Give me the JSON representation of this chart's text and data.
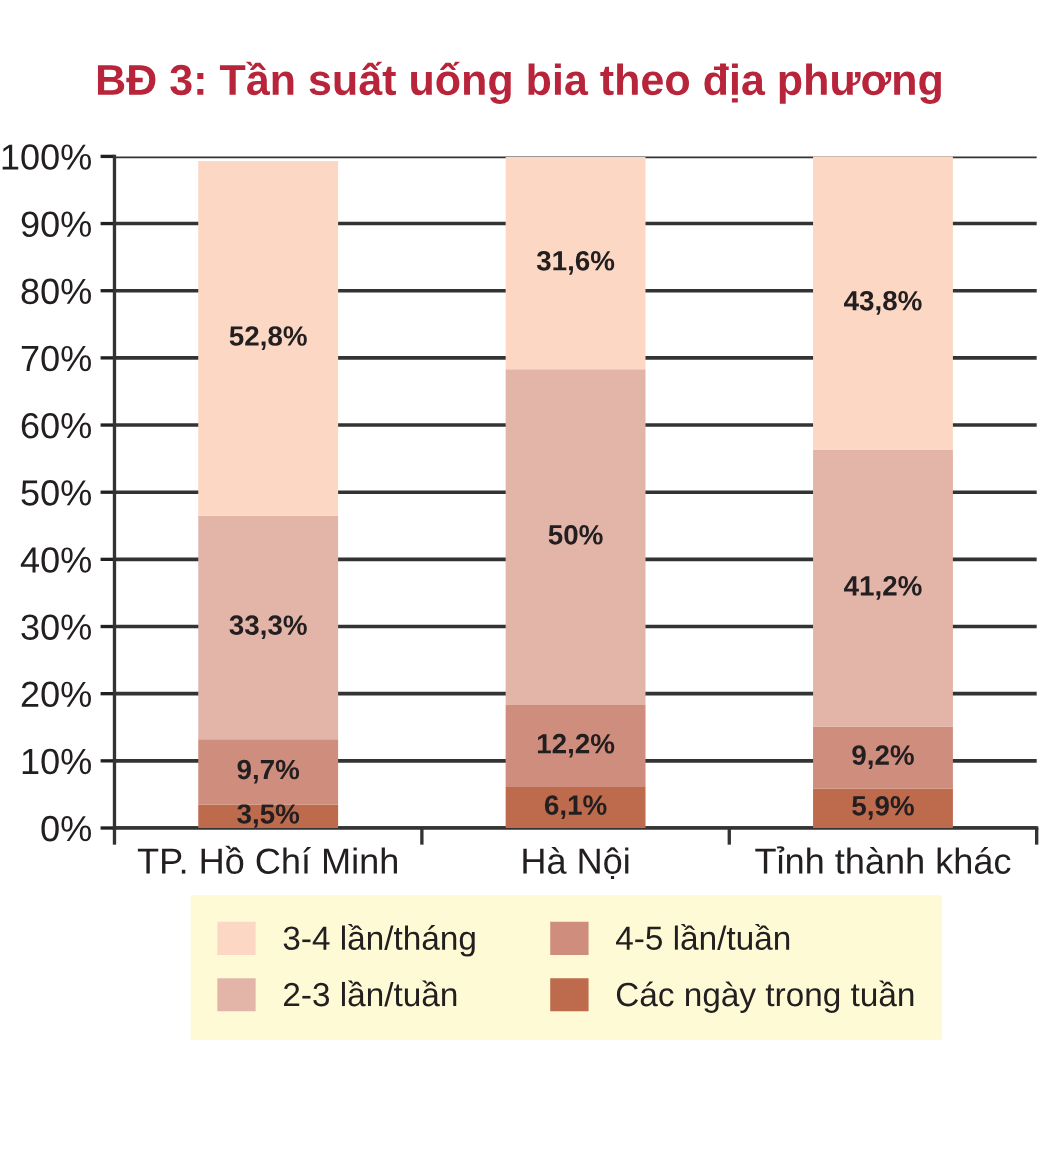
{
  "chart_data": {
    "type": "bar",
    "stacked": true,
    "title": "BĐ 3: Tần suất uống bia theo địa phương",
    "categories": [
      "TP. Hồ Chí Minh",
      "Hà Nội",
      "Tỉnh thành khác"
    ],
    "series": [
      {
        "name": "Các ngày trong tuần",
        "color": "#be6a4c",
        "values": [
          3.5,
          6.1,
          5.9
        ],
        "value_labels": [
          "3,5%",
          "6,1%",
          "5,9%"
        ]
      },
      {
        "name": "4-5 lần/tuần",
        "color": "#cf8d7d",
        "values": [
          9.7,
          12.2,
          9.2
        ],
        "value_labels": [
          "9,7%",
          "12,2%",
          "9,2%"
        ]
      },
      {
        "name": "2-3 lần/tuần",
        "color": "#e3b5a9",
        "values": [
          33.3,
          50,
          41.2
        ],
        "value_labels": [
          "33,3%",
          "50%",
          "41,2%"
        ]
      },
      {
        "name": "3-4 lần/tháng",
        "color": "#fcd8c4",
        "values": [
          52.8,
          31.6,
          43.8
        ],
        "value_labels": [
          "52,8%",
          "31,6%",
          "43,8%"
        ]
      }
    ],
    "ylim": [
      0,
      100
    ],
    "yticks": [
      {
        "value": 0,
        "label": "0%"
      },
      {
        "value": 10,
        "label": "10%"
      },
      {
        "value": 20,
        "label": "20%"
      },
      {
        "value": 30,
        "label": "30%"
      },
      {
        "value": 40,
        "label": "40%"
      },
      {
        "value": 50,
        "label": "50%"
      },
      {
        "value": 60,
        "label": "60%"
      },
      {
        "value": 70,
        "label": "70%"
      },
      {
        "value": 80,
        "label": "80%"
      },
      {
        "value": 90,
        "label": "90%"
      },
      {
        "value": 100,
        "label": "100%"
      }
    ],
    "grid": "y",
    "legend": "bottom"
  }
}
